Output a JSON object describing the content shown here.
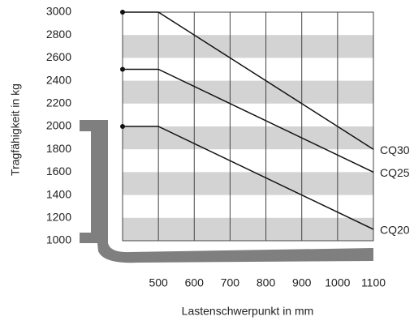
{
  "chart_data": {
    "type": "line",
    "x_label": "Lastenschwerpunkt in mm",
    "y_label": "Tragfähigkeit in kg",
    "x": [
      400,
      500,
      1100
    ],
    "series": [
      {
        "name": "CQ30",
        "color": "#111111",
        "values": [
          3000,
          3000,
          1800
        ]
      },
      {
        "name": "CQ25",
        "color": "#111111",
        "values": [
          2500,
          2500,
          1600
        ]
      },
      {
        "name": "CQ20",
        "color": "#111111",
        "values": [
          2000,
          2000,
          1100
        ]
      }
    ],
    "xlim": [
      400,
      1100
    ],
    "xticks": [
      500,
      600,
      700,
      800,
      900,
      1000,
      1100
    ],
    "ylim": [
      1000,
      3000
    ],
    "yticks": [
      1000,
      1200,
      1400,
      1600,
      1800,
      2000,
      2200,
      2400,
      2600,
      2800,
      3000
    ],
    "grid": true,
    "band_color": "#d3d3d3"
  }
}
